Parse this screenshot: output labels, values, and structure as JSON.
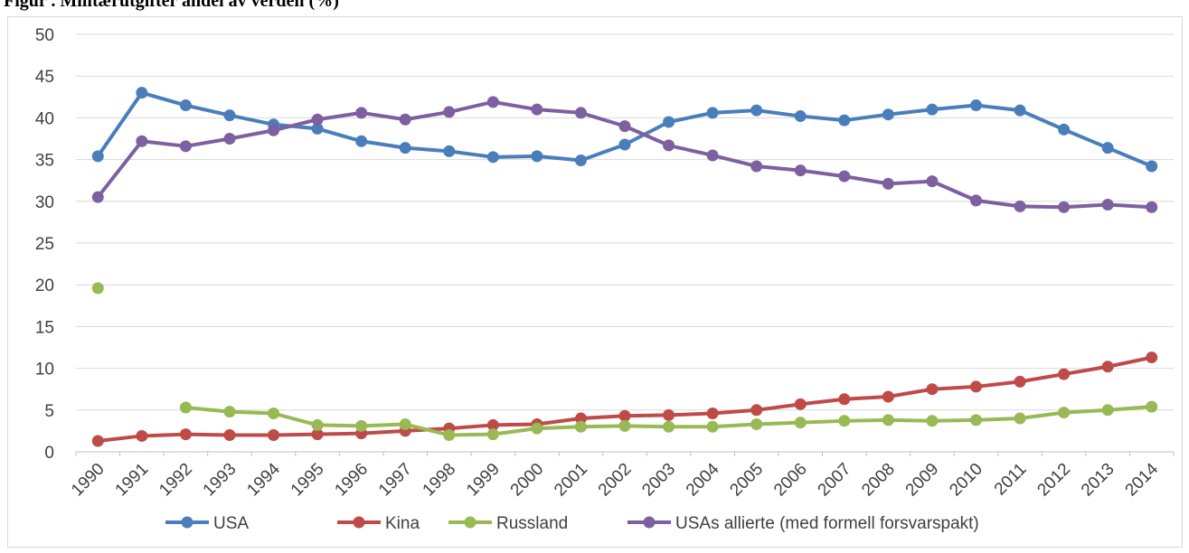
{
  "heading": "Figur . Militærutgifter andel av verden (%)",
  "chart_data": {
    "type": "line",
    "title": "",
    "xlabel": "",
    "ylabel": "",
    "ylim": [
      0,
      50
    ],
    "yticks": [
      0,
      5,
      10,
      15,
      20,
      25,
      30,
      35,
      40,
      45,
      50
    ],
    "grid": true,
    "legend_position": "bottom",
    "categories": [
      "1990",
      "1991",
      "1992",
      "1993",
      "1994",
      "1995",
      "1996",
      "1997",
      "1998",
      "1999",
      "2000",
      "2001",
      "2002",
      "2003",
      "2004",
      "2005",
      "2006",
      "2007",
      "2008",
      "2009",
      "2010",
      "2011",
      "2012",
      "2013",
      "2014"
    ],
    "series": [
      {
        "name": "USA",
        "color": "#4a7ebb",
        "values": [
          35.4,
          43.0,
          41.5,
          40.3,
          39.2,
          38.7,
          37.2,
          36.4,
          36.0,
          35.3,
          35.4,
          34.9,
          36.8,
          39.5,
          40.6,
          40.9,
          40.2,
          39.7,
          40.4,
          41.0,
          41.5,
          40.9,
          38.6,
          36.4,
          34.2
        ]
      },
      {
        "name": "Kina",
        "color": "#be4b48",
        "values": [
          1.3,
          1.9,
          2.1,
          2.0,
          2.0,
          2.1,
          2.2,
          2.5,
          2.8,
          3.2,
          3.3,
          4.0,
          4.3,
          4.4,
          4.6,
          5.0,
          5.7,
          6.3,
          6.6,
          7.5,
          7.8,
          8.4,
          9.3,
          10.2,
          11.3
        ]
      },
      {
        "name": "Russland",
        "color": "#98b954",
        "values": [
          19.6,
          null,
          5.3,
          4.8,
          4.6,
          3.2,
          3.1,
          3.3,
          2.0,
          2.1,
          2.8,
          3.0,
          3.1,
          3.0,
          3.0,
          3.3,
          3.5,
          3.7,
          3.8,
          3.7,
          3.8,
          4.0,
          4.7,
          5.0,
          5.4
        ]
      },
      {
        "name": "USAs allierte (med formell forsvarspakt)",
        "color": "#7d60a0",
        "values": [
          30.5,
          37.2,
          36.6,
          37.5,
          38.5,
          39.8,
          40.6,
          39.8,
          40.7,
          41.9,
          41.0,
          40.6,
          39.0,
          36.7,
          35.5,
          34.2,
          33.7,
          33.0,
          32.1,
          32.4,
          30.1,
          29.4,
          29.3,
          29.6,
          29.3
        ]
      }
    ]
  }
}
